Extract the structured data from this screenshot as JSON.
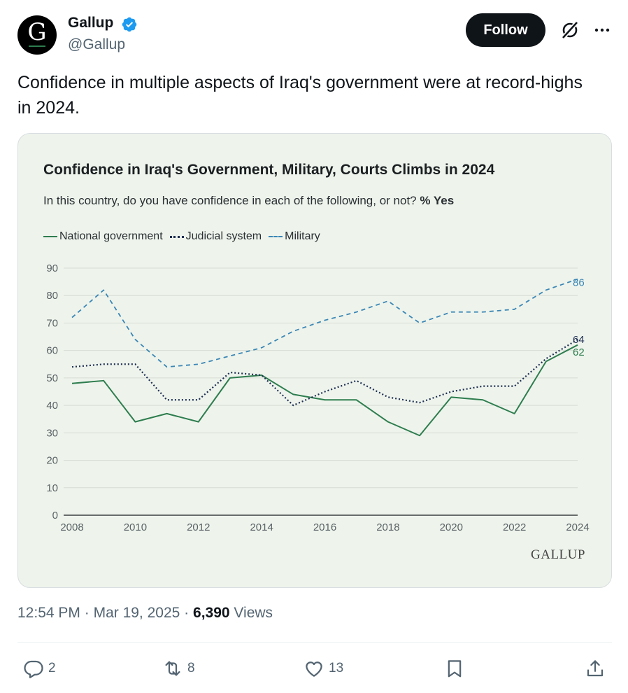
{
  "account": {
    "avatar_letter": "G",
    "name": "Gallup",
    "handle": "@Gallup",
    "follow_label": "Follow"
  },
  "tweet": {
    "text": "Confidence in multiple aspects of Iraq's government were at record-highs in 2024."
  },
  "chart": {
    "subtitle_prefix": "In this country, do you have confidence in each of the following, or not?",
    "subtitle_bold": "% Yes",
    "brand": "GALLUP"
  },
  "chart_data": {
    "type": "line",
    "title": "Confidence in Iraq's Government, Military, Courts Climbs in 2024",
    "xlabel": "",
    "ylabel": "",
    "ylim": [
      0,
      90
    ],
    "yticks": [
      0,
      10,
      20,
      30,
      40,
      50,
      60,
      70,
      80,
      90
    ],
    "xticks": [
      2008,
      2010,
      2012,
      2014,
      2016,
      2018,
      2020,
      2022,
      2024
    ],
    "x": [
      2008,
      2009,
      2010,
      2011,
      2012,
      2013,
      2014,
      2015,
      2016,
      2017,
      2018,
      2019,
      2020,
      2021,
      2022,
      2023,
      2024
    ],
    "grid": true,
    "legend": "top-left",
    "series": [
      {
        "name": "National government",
        "color": "#2e7d4f",
        "style": "solid",
        "values": [
          48,
          49,
          34,
          37,
          34,
          50,
          51,
          44,
          42,
          42,
          34,
          29,
          43,
          42,
          37,
          56,
          62
        ]
      },
      {
        "name": "Judicial system",
        "color": "#1e2d52",
        "style": "dotted",
        "values": [
          54,
          55,
          55,
          42,
          42,
          52,
          51,
          40,
          45,
          49,
          43,
          41,
          45,
          47,
          47,
          57,
          64
        ]
      },
      {
        "name": "Military",
        "color": "#3b86b5",
        "style": "dashed",
        "values": [
          72,
          82,
          64,
          54,
          55,
          58,
          61,
          67,
          71,
          74,
          78,
          70,
          74,
          74,
          75,
          82,
          86
        ]
      }
    ],
    "end_labels": [
      "62",
      "64",
      "86"
    ]
  },
  "meta": {
    "time": "12:54 PM",
    "separator": "·",
    "date": "Mar 19, 2025",
    "views_count": "6,390",
    "views_label": "Views"
  },
  "actions": {
    "replies": "2",
    "reposts": "8",
    "likes": "13"
  },
  "colors": {
    "follow_bg": "#0f1419",
    "verified": "#1d9bf0",
    "card_bg": "#eef4ec"
  }
}
